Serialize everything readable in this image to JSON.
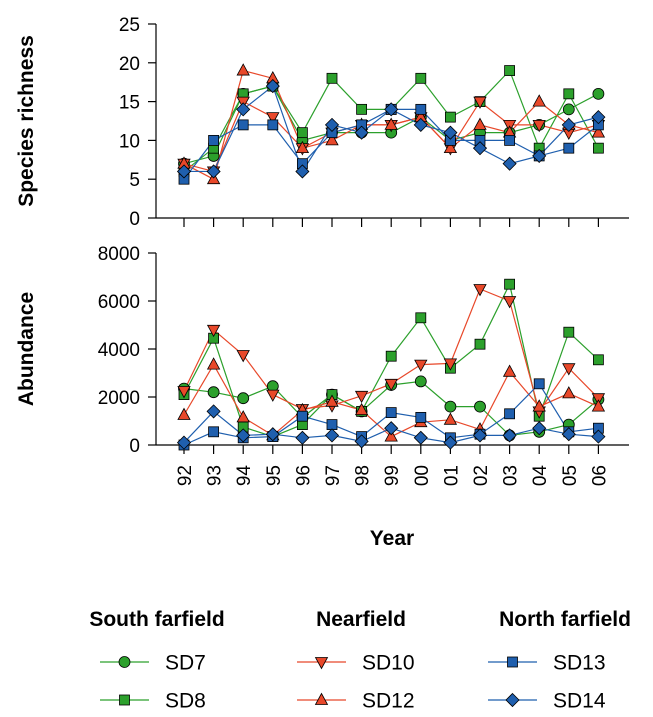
{
  "chart_data": [
    {
      "type": "line",
      "ylabel": "Species richness",
      "xlabel": "",
      "ylim": [
        0,
        25
      ],
      "yticks": [
        0,
        5,
        10,
        15,
        20,
        25
      ],
      "categories": [
        "92",
        "93",
        "94",
        "95",
        "96",
        "97",
        "98",
        "99",
        "00",
        "01",
        "02",
        "03",
        "04",
        "05",
        "06"
      ],
      "series": [
        {
          "name": "SD7",
          "color": "#2ca02c",
          "marker": "circle",
          "values": [
            7,
            8,
            16,
            17,
            10,
            11,
            11,
            11,
            13,
            10,
            11,
            11,
            12,
            14,
            16
          ]
        },
        {
          "name": "SD8",
          "color": "#2ca02c",
          "marker": "square",
          "values": [
            6,
            9,
            16,
            17,
            11,
            18,
            14,
            14,
            18,
            13,
            15,
            19,
            9,
            16,
            9
          ]
        },
        {
          "name": "SD10",
          "color": "#e8482a",
          "marker": "triangle-down",
          "values": [
            7,
            6,
            15,
            13,
            9,
            11,
            12,
            12,
            13,
            9,
            15,
            12,
            12,
            11,
            12
          ]
        },
        {
          "name": "SD12",
          "color": "#e8482a",
          "marker": "triangle-up",
          "values": [
            7,
            5,
            19,
            18,
            9,
            10,
            12,
            12,
            13,
            9,
            12,
            11,
            15,
            12,
            11
          ]
        },
        {
          "name": "SD13",
          "color": "#1f5fae",
          "marker": "square",
          "values": [
            5,
            10,
            12,
            12,
            7,
            11,
            12,
            14,
            14,
            10,
            10,
            10,
            8,
            9,
            12
          ]
        },
        {
          "name": "SD14",
          "color": "#1f5fae",
          "marker": "diamond",
          "values": [
            6,
            6,
            14,
            17,
            6,
            12,
            11,
            14,
            12,
            11,
            9,
            7,
            8,
            12,
            13
          ]
        }
      ]
    },
    {
      "type": "line",
      "ylabel": "Abundance",
      "xlabel": "Year",
      "ylim": [
        0,
        8000
      ],
      "yticks": [
        0,
        2000,
        4000,
        6000,
        8000
      ],
      "categories": [
        "92",
        "93",
        "94",
        "95",
        "96",
        "97",
        "98",
        "99",
        "00",
        "01",
        "02",
        "03",
        "04",
        "05",
        "06"
      ],
      "series": [
        {
          "name": "SD7",
          "color": "#2ca02c",
          "marker": "circle",
          "values": [
            2350,
            2200,
            1950,
            2450,
            1150,
            2100,
            1400,
            2500,
            2650,
            1600,
            1600,
            400,
            550,
            850,
            1900
          ]
        },
        {
          "name": "SD8",
          "color": "#2ca02c",
          "marker": "square",
          "values": [
            2100,
            4450,
            750,
            350,
            850,
            2100,
            1400,
            3700,
            5300,
            3200,
            4200,
            6700,
            1200,
            4700,
            3550
          ]
        },
        {
          "name": "SD10",
          "color": "#e8482a",
          "marker": "triangle-down",
          "values": [
            2250,
            4800,
            3750,
            2100,
            1500,
            1650,
            2050,
            2550,
            3350,
            3400,
            6500,
            6000,
            1400,
            3200,
            1950
          ]
        },
        {
          "name": "SD12",
          "color": "#e8482a",
          "marker": "triangle-up",
          "values": [
            1250,
            3350,
            1150,
            400,
            1450,
            1800,
            1450,
            350,
            950,
            1050,
            650,
            3050,
            1600,
            2150,
            1600
          ]
        },
        {
          "name": "SD13",
          "color": "#1f5fae",
          "marker": "square",
          "values": [
            0,
            550,
            300,
            350,
            1200,
            850,
            350,
            1350,
            1150,
            300,
            450,
            1300,
            2550,
            550,
            700
          ]
        },
        {
          "name": "SD14",
          "color": "#1f5fae",
          "marker": "diamond",
          "values": [
            100,
            1400,
            400,
            450,
            300,
            400,
            150,
            700,
            300,
            100,
            400,
            400,
            700,
            450,
            350
          ]
        }
      ]
    }
  ],
  "legend": {
    "groups": [
      {
        "title": "South farfield",
        "entries": [
          "SD7",
          "SD8"
        ]
      },
      {
        "title": "Nearfield",
        "entries": [
          "SD10",
          "SD12"
        ]
      },
      {
        "title": "North farfield",
        "entries": [
          "SD13",
          "SD14"
        ]
      }
    ]
  }
}
